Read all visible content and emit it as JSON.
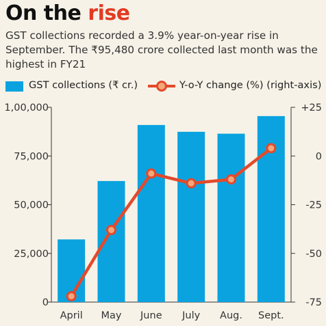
{
  "header": {
    "title_main": "On the ",
    "title_accent": "rise",
    "subtitle": "GST collections recorded a 3.9% year-on-year rise in September. The ₹95,480 crore collected last month was the highest in FY21"
  },
  "legend": {
    "bar_label": "GST collections (₹ cr.)",
    "line_label": "Y-o-Y change (%) (right-axis)"
  },
  "colors": {
    "bar": "#0aa3e0",
    "line": "#e34a2b",
    "marker_fill": "#f4a87a",
    "background": "#f6f2e8"
  },
  "chart_data": {
    "type": "bar",
    "categories": [
      "April",
      "May",
      "June",
      "July",
      "Aug.",
      "Sept."
    ],
    "series": [
      {
        "name": "GST collections (₹ cr.)",
        "type": "bar",
        "axis": "left",
        "values": [
          32172,
          62151,
          90917,
          87422,
          86449,
          95480
        ]
      },
      {
        "name": "Y-o-Y change (%) (right-axis)",
        "type": "line",
        "axis": "right",
        "values": [
          -72,
          -38,
          -9,
          -14,
          -12,
          4
        ]
      }
    ],
    "y_left": {
      "range": [
        0,
        100000
      ],
      "ticks": [
        "0",
        "25,000",
        "50,000",
        "75,000",
        "1,00,000"
      ],
      "tick_values": [
        0,
        25000,
        50000,
        75000,
        100000
      ]
    },
    "y_right": {
      "range": [
        -75,
        25
      ],
      "ticks": [
        "-75",
        "-50",
        "-25",
        "0",
        "+25"
      ],
      "tick_values": [
        -75,
        -50,
        -25,
        0,
        25
      ]
    },
    "grid": false,
    "legend_position": "top"
  }
}
